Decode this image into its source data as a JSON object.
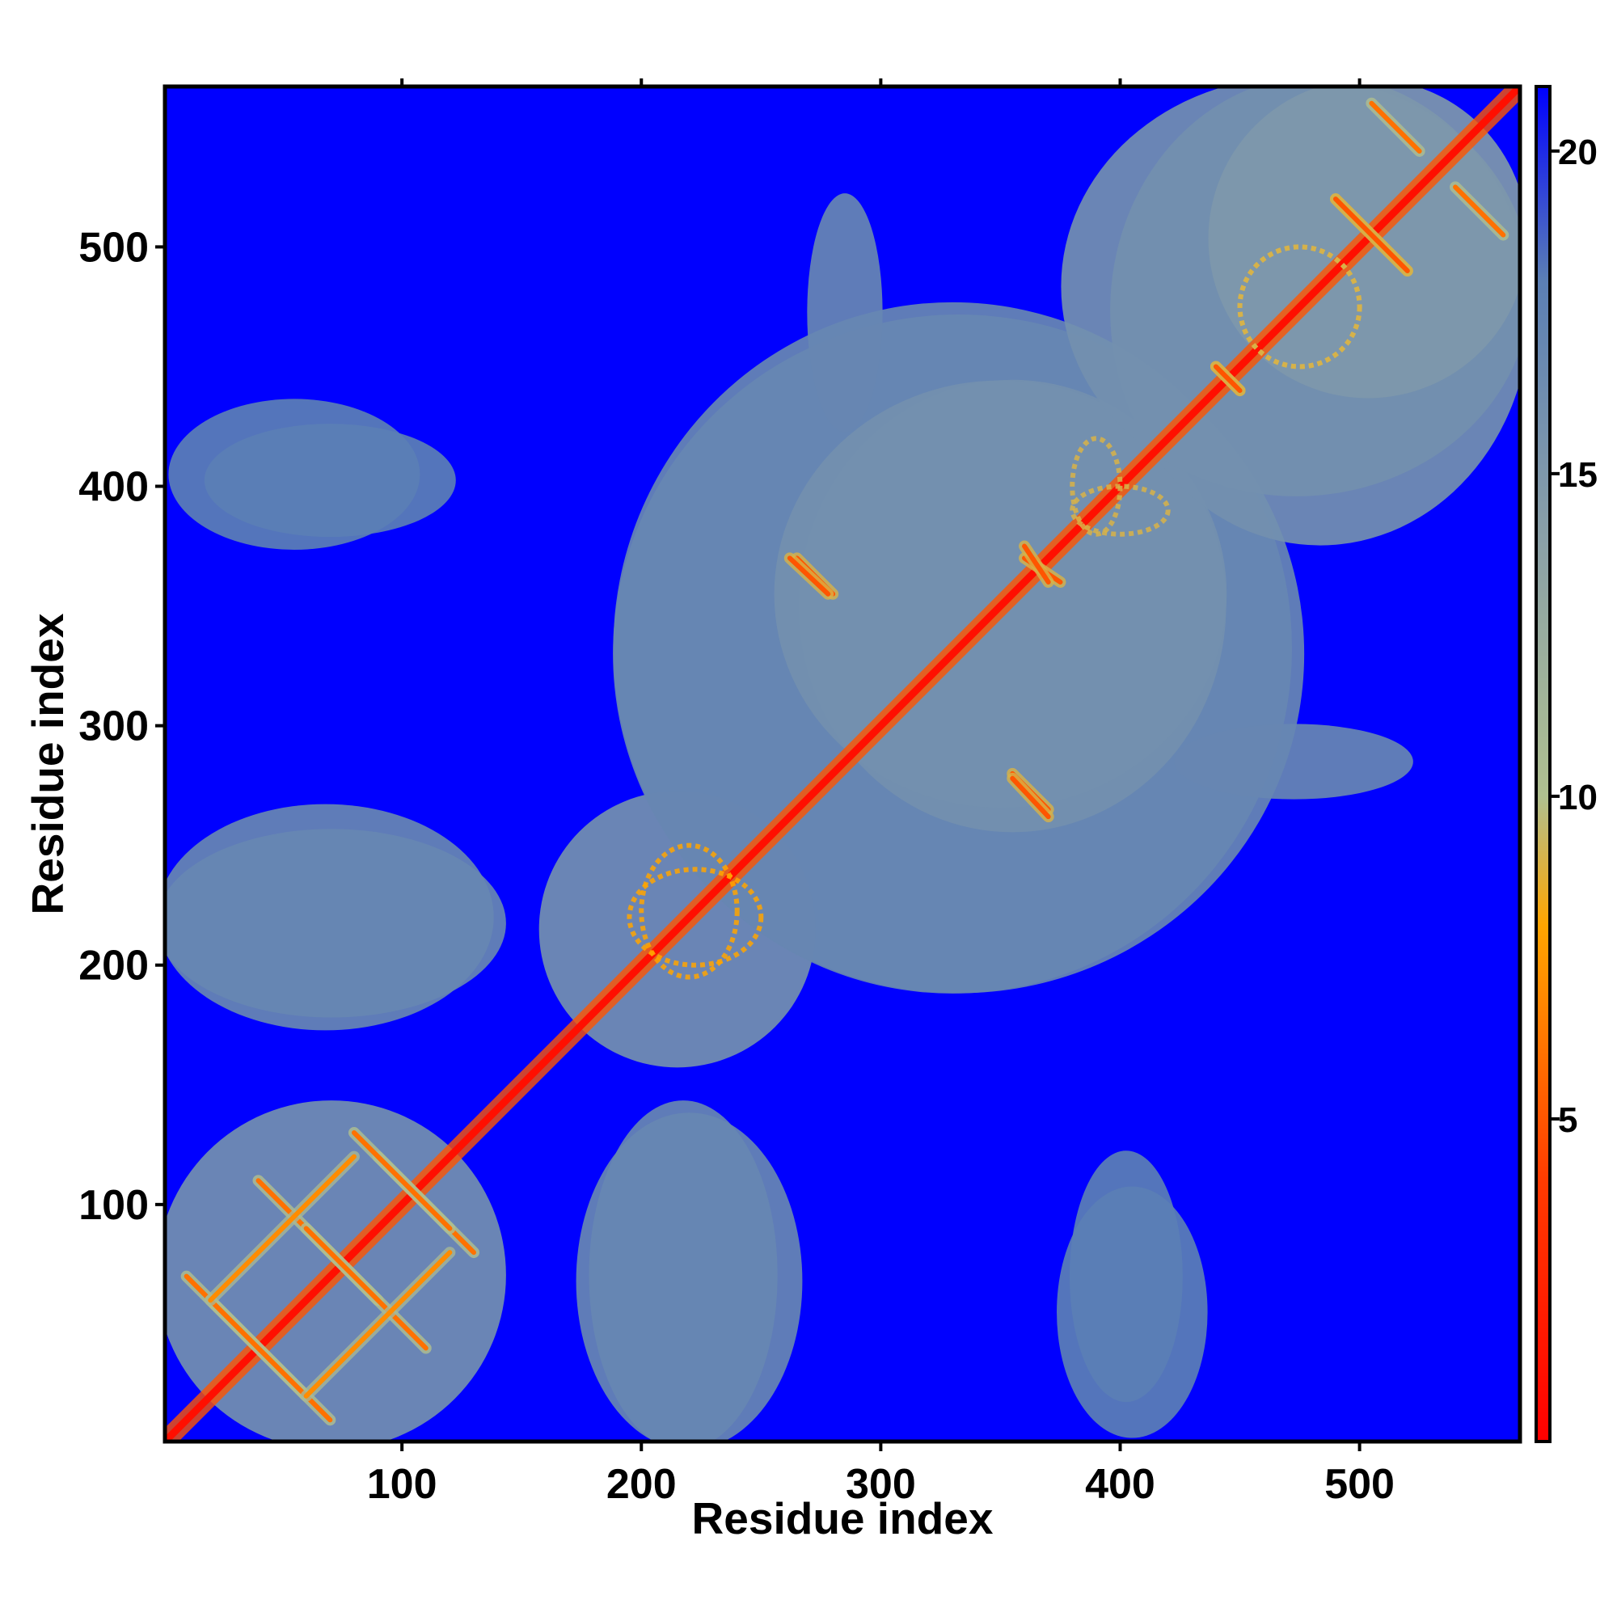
{
  "chart_data": {
    "type": "heatmap",
    "title": "",
    "xlabel": "Residue index",
    "ylabel": "Residue index",
    "xlim": [
      1,
      567
    ],
    "ylim": [
      1,
      567
    ],
    "x_ticks": [
      100,
      200,
      300,
      400,
      500
    ],
    "y_ticks": [
      100,
      200,
      300,
      400,
      500
    ],
    "colorbar": {
      "range": [
        0,
        21
      ],
      "ticks": [
        5,
        10,
        15,
        20
      ],
      "colors": [
        {
          "value": 0,
          "color": "#ff0000"
        },
        {
          "value": 4,
          "color": "#ff3a00"
        },
        {
          "value": 7,
          "color": "#ff8c00"
        },
        {
          "value": 8,
          "color": "#ffa500"
        },
        {
          "value": 10,
          "color": "#b0c090"
        },
        {
          "value": 14,
          "color": "#8aa0a8"
        },
        {
          "value": 18,
          "color": "#5b7fb5"
        },
        {
          "value": 21,
          "color": "#0000ff"
        }
      ]
    },
    "background_color": "#0000ff",
    "regions": [
      {
        "x": [
          1,
          140
        ],
        "y": [
          1,
          140
        ],
        "value": 16
      },
      {
        "x": [
          160,
          270
        ],
        "y": [
          160,
          270
        ],
        "value": 16
      },
      {
        "x": [
          195,
          465
        ],
        "y": [
          195,
          470
        ],
        "value": 17
      },
      {
        "x": [
          270,
          440
        ],
        "y": [
          260,
          440
        ],
        "value": 16
      },
      {
        "x": [
          400,
          567
        ],
        "y": [
          380,
          567
        ],
        "value": 16
      },
      {
        "x": [
          440,
          567
        ],
        "y": [
          440,
          567
        ],
        "value": 15
      },
      {
        "x": [
          1,
          140
        ],
        "y": [
          180,
          255
        ],
        "value": 17
      },
      {
        "x": [
          175,
          265
        ],
        "y": [
          1,
          135
        ],
        "value": 17
      },
      {
        "x": [
          20,
          120
        ],
        "y": [
          380,
          425
        ],
        "value": 18
      },
      {
        "x": [
          375,
          435
        ],
        "y": [
          5,
          105
        ],
        "value": 18
      },
      {
        "x": [
          270,
          300
        ],
        "y": [
          425,
          520
        ],
        "value": 17
      }
    ],
    "contacts": [
      {
        "x": [
          1,
          567
        ],
        "y": [
          1,
          567
        ],
        "value": 1,
        "kind": "diagonal"
      },
      {
        "x": [
          10,
          60
        ],
        "y": [
          70,
          20
        ],
        "value": 6,
        "kind": "antiparallel"
      },
      {
        "x": [
          40,
          90
        ],
        "y": [
          110,
          60
        ],
        "value": 6,
        "kind": "antiparallel"
      },
      {
        "x": [
          60,
          120
        ],
        "y": [
          20,
          80
        ],
        "value": 7,
        "kind": "parallel"
      },
      {
        "x": [
          90,
          130
        ],
        "y": [
          120,
          80
        ],
        "value": 6,
        "kind": "antiparallel"
      },
      {
        "x": [
          265,
          280
        ],
        "y": [
          370,
          355
        ],
        "value": 5,
        "kind": "antiparallel"
      },
      {
        "x": [
          360,
          375
        ],
        "y": [
          370,
          360
        ],
        "value": 5,
        "kind": "antiparallel"
      },
      {
        "x": [
          355,
          370
        ],
        "y": [
          278,
          262
        ],
        "value": 5,
        "kind": "antiparallel"
      },
      {
        "x": [
          440,
          450
        ],
        "y": [
          450,
          440
        ],
        "value": 5,
        "kind": "antiparallel"
      },
      {
        "x": [
          490,
          520
        ],
        "y": [
          520,
          490
        ],
        "value": 5,
        "kind": "antiparallel"
      },
      {
        "x": [
          505,
          525
        ],
        "y": [
          560,
          540
        ],
        "value": 6,
        "kind": "antiparallel"
      },
      {
        "x": [
          200,
          240
        ],
        "y": [
          250,
          195
        ],
        "value": 8,
        "kind": "ring"
      },
      {
        "x": [
          380,
          420
        ],
        "y": [
          400,
          380
        ],
        "value": 9,
        "kind": "ring"
      },
      {
        "x": [
          450,
          500
        ],
        "y": [
          500,
          450
        ],
        "value": 9,
        "kind": "ring"
      }
    ]
  }
}
